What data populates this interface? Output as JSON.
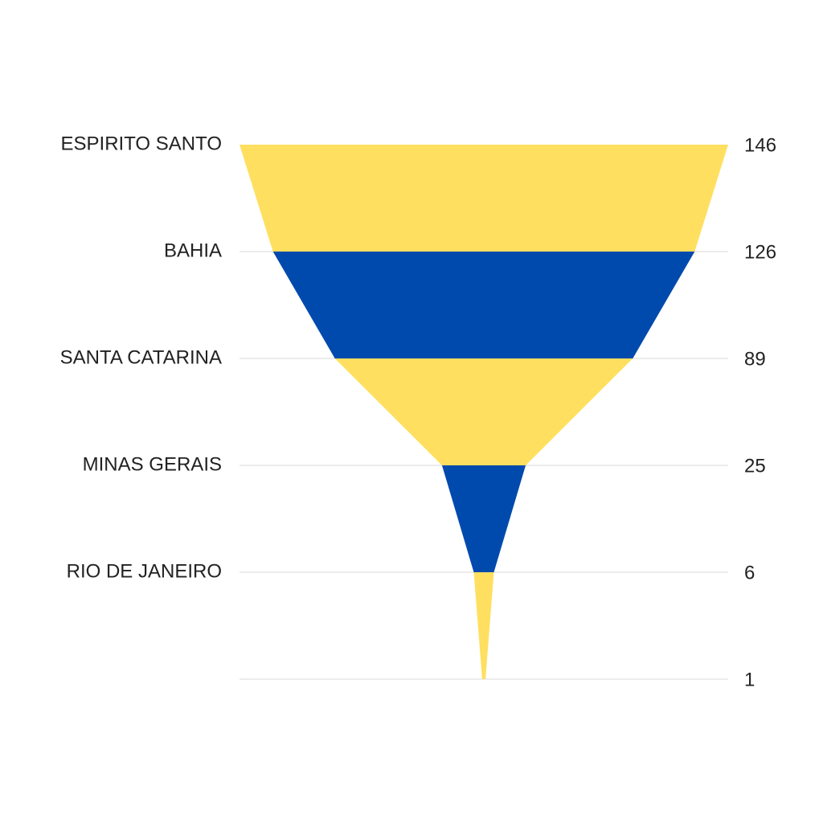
{
  "chart_data": {
    "type": "funnel",
    "categories": [
      "ESPIRITO SANTO",
      "BAHIA",
      "SANTA CATARINA",
      "MINAS GERAIS",
      "RIO DE JANEIRO",
      null
    ],
    "values": [
      146,
      126,
      89,
      25,
      6,
      1
    ],
    "colors": [
      "#FFDF5F",
      "#004AAD"
    ],
    "grid": true
  }
}
